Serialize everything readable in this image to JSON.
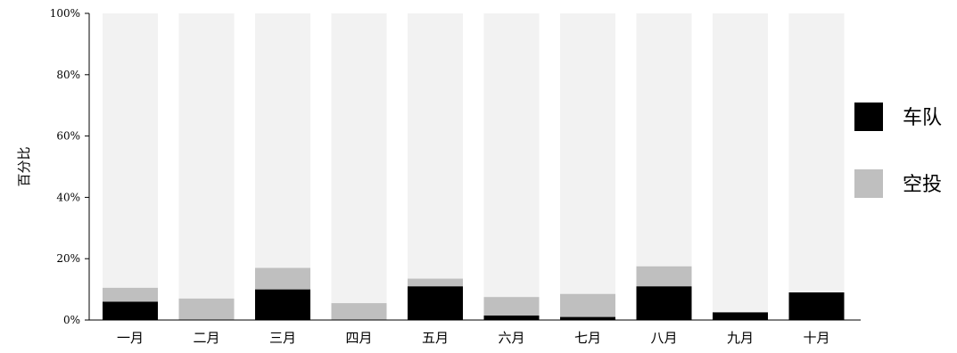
{
  "chart_data": {
    "type": "bar",
    "stacked": true,
    "categories": [
      "一月",
      "二月",
      "三月",
      "四月",
      "五月",
      "六月",
      "七月",
      "八月",
      "九月",
      "十月"
    ],
    "series": [
      {
        "name": "车队",
        "color": "#000000",
        "values": [
          6,
          0,
          10,
          0,
          11,
          1.5,
          1,
          11,
          2.5,
          9
        ]
      },
      {
        "name": "空投",
        "color": "#bfbfbf",
        "values": [
          4.5,
          7,
          7,
          5.5,
          2.5,
          6,
          7.5,
          6.5,
          0,
          0
        ]
      }
    ],
    "remainder_color": "#f2f2f2",
    "title": "",
    "xlabel": "",
    "ylabel": "百分比",
    "ylim": [
      0,
      100
    ],
    "yticks": [
      "0%",
      "20%",
      "40%",
      "60%",
      "80%",
      "100%"
    ],
    "grid": false,
    "legend_position": "right"
  }
}
